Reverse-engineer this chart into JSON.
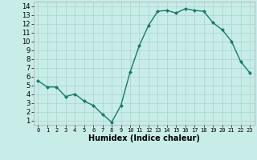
{
  "x": [
    0,
    1,
    2,
    3,
    4,
    5,
    6,
    7,
    8,
    9,
    10,
    11,
    12,
    13,
    14,
    15,
    16,
    17,
    18,
    19,
    20,
    21,
    22,
    23
  ],
  "y": [
    5.5,
    4.8,
    4.8,
    3.7,
    4.0,
    3.2,
    2.7,
    1.7,
    0.8,
    2.7,
    6.5,
    9.5,
    11.8,
    13.4,
    13.5,
    13.2,
    13.7,
    13.5,
    13.4,
    12.1,
    11.3,
    10.0,
    7.7,
    6.4
  ],
  "line_color": "#1a7a6a",
  "marker": "D",
  "marker_size": 2,
  "bg_color": "#c8ece8",
  "grid_color": "#b0d8d2",
  "xlabel": "Humidex (Indice chaleur)",
  "xlim": [
    -0.5,
    23.5
  ],
  "ylim": [
    0.5,
    14.5
  ],
  "xticks": [
    0,
    1,
    2,
    3,
    4,
    5,
    6,
    7,
    8,
    9,
    10,
    11,
    12,
    13,
    14,
    15,
    16,
    17,
    18,
    19,
    20,
    21,
    22,
    23
  ],
  "yticks": [
    1,
    2,
    3,
    4,
    5,
    6,
    7,
    8,
    9,
    10,
    11,
    12,
    13,
    14
  ],
  "xtick_fontsize": 5.0,
  "ytick_fontsize": 6.0,
  "xlabel_fontsize": 7.0,
  "linewidth": 1.0
}
